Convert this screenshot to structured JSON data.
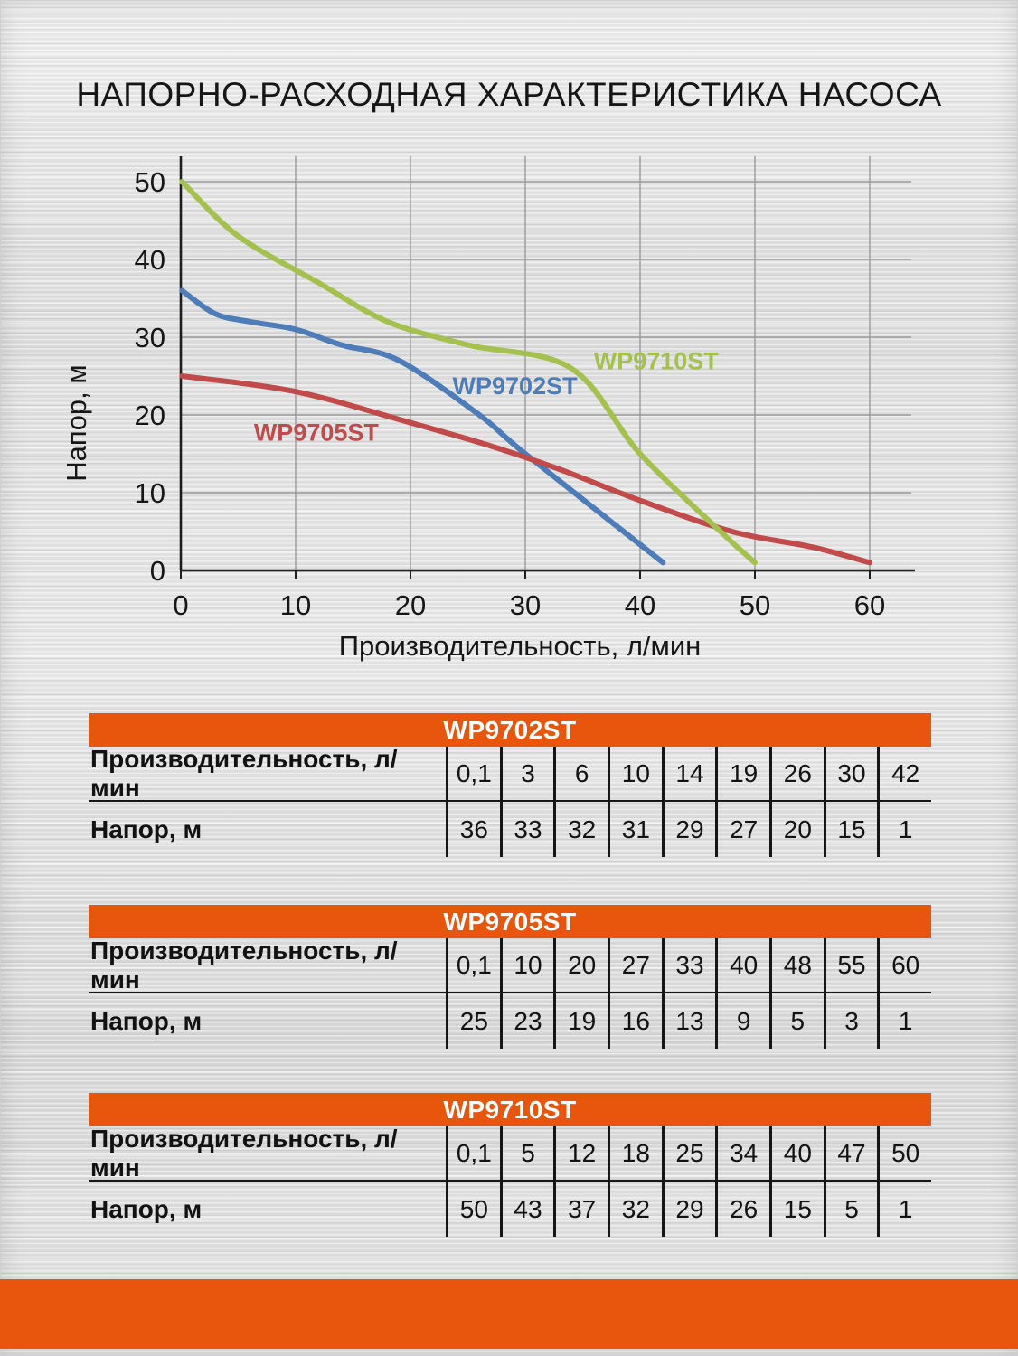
{
  "page": {
    "title": "НАПОРНО-РАСХОДНАЯ ХАРАКТЕРИСТИКА НАСОСА",
    "accent_color": "#e8550d",
    "text_color": "#161616",
    "grid_color": "#9a9a9a",
    "axis_color": "#1e1e1e"
  },
  "chart_data": {
    "type": "line",
    "title": "",
    "xlabel": "Производительность, л/мин",
    "ylabel": "Напор, м",
    "xlim": [
      0,
      63
    ],
    "ylim": [
      0,
      52
    ],
    "xticks": [
      0,
      10,
      20,
      30,
      40,
      50,
      60
    ],
    "yticks": [
      0,
      10,
      20,
      30,
      40,
      50
    ],
    "grid": true,
    "legend_position": "inline-curve-labels",
    "series": [
      {
        "name": "WP9702ST",
        "color": "#4d7cb8",
        "x": [
          0.1,
          3,
          6,
          10,
          14,
          19,
          26,
          30,
          42
        ],
        "y": [
          36,
          33,
          32,
          31,
          29,
          27,
          20,
          15,
          1
        ],
        "label_at": {
          "x": 29.1,
          "y": 22.7
        }
      },
      {
        "name": "WP9705ST",
        "color": "#c14b4b",
        "x": [
          0.1,
          10,
          20,
          27,
          33,
          40,
          48,
          55,
          60
        ],
        "y": [
          25,
          23,
          19,
          16,
          13,
          9,
          5,
          3,
          1
        ],
        "label_at": {
          "x": 11.8,
          "y": 16.7
        }
      },
      {
        "name": "WP9710ST",
        "color": "#a4c14f",
        "x": [
          0.1,
          5,
          12,
          18,
          25,
          34,
          40,
          47,
          50
        ],
        "y": [
          50,
          43,
          37,
          32,
          29,
          26,
          15,
          5,
          1
        ],
        "label_at": {
          "x": 41.4,
          "y": 25.9
        }
      }
    ]
  },
  "tables": [
    {
      "title": "WP9702ST",
      "rows": [
        {
          "label": "Производительность, л/мин",
          "values": [
            "0,1",
            "3",
            "6",
            "10",
            "14",
            "19",
            "26",
            "30",
            "42"
          ]
        },
        {
          "label": "Напор, м",
          "values": [
            "36",
            "33",
            "32",
            "31",
            "29",
            "27",
            "20",
            "15",
            "1"
          ]
        }
      ]
    },
    {
      "title": "WP9705ST",
      "rows": [
        {
          "label": "Производительность, л/мин",
          "values": [
            "0,1",
            "10",
            "20",
            "27",
            "33",
            "40",
            "48",
            "55",
            "60"
          ]
        },
        {
          "label": "Напор, м",
          "values": [
            "25",
            "23",
            "19",
            "16",
            "13",
            "9",
            "5",
            "3",
            "1"
          ]
        }
      ]
    },
    {
      "title": "WP9710ST",
      "rows": [
        {
          "label": "Производительность, л/мин",
          "values": [
            "0,1",
            "5",
            "12",
            "18",
            "25",
            "34",
            "40",
            "47",
            "50"
          ]
        },
        {
          "label": "Напор, м",
          "values": [
            "50",
            "43",
            "37",
            "32",
            "29",
            "26",
            "15",
            "5",
            "1"
          ]
        }
      ]
    }
  ]
}
